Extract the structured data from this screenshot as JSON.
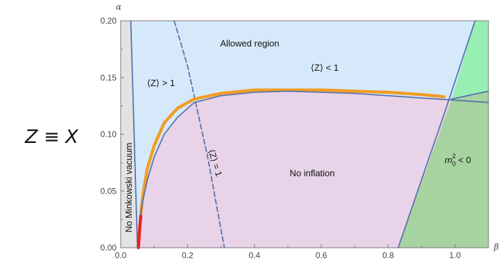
{
  "equation_label": "Z ≡ X",
  "chart_data": {
    "type": "area",
    "xlabel": "β",
    "ylabel": "α",
    "xlim": [
      0,
      1.1
    ],
    "ylim": [
      0,
      0.2
    ],
    "x_ticks": [
      "0.0",
      "0.2",
      "0.4",
      "0.6",
      "0.8",
      "1.0"
    ],
    "y_ticks": [
      "0.00",
      "0.05",
      "0.10",
      "0.15",
      "0.20"
    ],
    "regions": [
      {
        "label": "Allowed region",
        "color": "#d6e9fb"
      },
      {
        "label": "No inflation",
        "color": "#e8d3e8"
      },
      {
        "label": "No Minkowski vacuum",
        "color": "#e3e3e3"
      },
      {
        "label": "m₀² < 0",
        "color": "#a7d3a1"
      },
      {
        "label": "",
        "color": "#98efb3"
      }
    ],
    "annotations": {
      "z_gt_1": "⟨Z⟩ > 1",
      "z_lt_1": "⟨Z⟩ < 1",
      "z_eq_1": "⟨Z⟩ = 1",
      "m0_main": "m",
      "m0_sup": "2",
      "m0_sub": "0",
      "m0_rest": " < 0"
    },
    "curves": {
      "no_inflation_boundary": {
        "color": "#5773ad",
        "points": [
          [
            0.05,
            0.0
          ],
          [
            0.055,
            0.02
          ],
          [
            0.065,
            0.04
          ],
          [
            0.08,
            0.06
          ],
          [
            0.1,
            0.08
          ],
          [
            0.13,
            0.1
          ],
          [
            0.17,
            0.115
          ],
          [
            0.22,
            0.128
          ],
          [
            0.3,
            0.134
          ],
          [
            0.4,
            0.137
          ],
          [
            0.5,
            0.138
          ],
          [
            0.6,
            0.137
          ],
          [
            0.7,
            0.136
          ],
          [
            0.8,
            0.134
          ],
          [
            0.9,
            0.132
          ],
          [
            1.0,
            0.13
          ],
          [
            1.1,
            0.128
          ]
        ]
      },
      "minkowski_boundary": {
        "color": "#5773ad",
        "points": [
          [
            0.03,
            0.2
          ],
          [
            0.05,
            0.0
          ]
        ]
      },
      "z_equals_1": {
        "color": "#5773ad",
        "dashed": true,
        "points": [
          [
            0.16,
            0.2
          ],
          [
            0.2,
            0.16
          ],
          [
            0.23,
            0.12
          ],
          [
            0.26,
            0.08
          ],
          [
            0.285,
            0.04
          ],
          [
            0.31,
            0.0
          ]
        ]
      },
      "m0_boundary": {
        "color": "#5773ad",
        "points": [
          [
            0.83,
            0.0
          ],
          [
            0.97,
            0.12
          ],
          [
            1.06,
            0.2
          ]
        ]
      },
      "upper_green_boundary": {
        "color": "#5773ad",
        "points": [
          [
            0.99,
            0.131
          ],
          [
            1.1,
            0.138
          ]
        ]
      },
      "orange_numerical": {
        "color": "#f39c24",
        "points": [
          [
            0.06,
            0.03
          ],
          [
            0.068,
            0.05
          ],
          [
            0.08,
            0.07
          ],
          [
            0.1,
            0.09
          ],
          [
            0.13,
            0.11
          ],
          [
            0.17,
            0.123
          ],
          [
            0.22,
            0.131
          ],
          [
            0.3,
            0.136
          ],
          [
            0.4,
            0.139
          ],
          [
            0.5,
            0.139
          ],
          [
            0.6,
            0.139
          ],
          [
            0.7,
            0.138
          ],
          [
            0.8,
            0.137
          ],
          [
            0.9,
            0.135
          ],
          [
            0.97,
            0.133
          ]
        ]
      },
      "red_numerical": {
        "color": "#e8231e",
        "points": [
          [
            0.053,
            0.0
          ],
          [
            0.055,
            0.01
          ],
          [
            0.057,
            0.018
          ],
          [
            0.06,
            0.028
          ]
        ]
      }
    }
  }
}
